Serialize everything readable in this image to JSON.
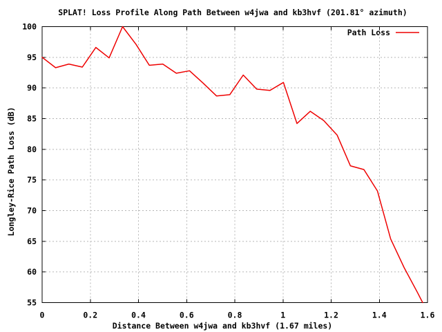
{
  "page": {
    "background": "#ffffff"
  },
  "chart_data": {
    "type": "line",
    "title": "SPLAT! Loss Profile Along Path Between w4jwa and kb3hvf (201.81° azimuth)",
    "xlabel": "Distance Between w4jwa and kb3hvf (1.67 miles)",
    "ylabel": "Longley-Rice Path Loss (dB)",
    "xlim": [
      0,
      1.6
    ],
    "ylim": [
      55,
      100
    ],
    "x_ticks": [
      0,
      0.2,
      0.4,
      0.6,
      0.8,
      1.0,
      1.2,
      1.4,
      1.6
    ],
    "x_tick_labels": [
      "0",
      "0.2",
      "0.4",
      "0.6",
      "0.8",
      "1",
      "1.2",
      "1.4",
      "1.6"
    ],
    "y_ticks": [
      55,
      60,
      65,
      70,
      75,
      80,
      85,
      90,
      95,
      100
    ],
    "y_tick_labels": [
      "55",
      "60",
      "65",
      "70",
      "75",
      "80",
      "85",
      "90",
      "95",
      "100"
    ],
    "grid": "dashed",
    "legend": {
      "position": "top-right-inside",
      "entries": [
        {
          "label": "Path Loss",
          "color": "#ee0000"
        }
      ]
    },
    "colors": {
      "axis": "#000000",
      "grid": "#b4b4b4",
      "text": "#000000",
      "background": "#ffffff"
    },
    "series": [
      {
        "name": "Path Loss",
        "color": "#ee0000",
        "points": [
          [
            0.0,
            95.0
          ],
          [
            0.056,
            93.3
          ],
          [
            0.111,
            93.9
          ],
          [
            0.167,
            93.4
          ],
          [
            0.223,
            96.6
          ],
          [
            0.278,
            94.9
          ],
          [
            0.334,
            100.0
          ],
          [
            0.39,
            97.1
          ],
          [
            0.445,
            93.7
          ],
          [
            0.501,
            93.9
          ],
          [
            0.557,
            92.4
          ],
          [
            0.612,
            92.8
          ],
          [
            0.668,
            90.8
          ],
          [
            0.724,
            88.7
          ],
          [
            0.779,
            88.9
          ],
          [
            0.835,
            92.1
          ],
          [
            0.891,
            89.8
          ],
          [
            0.946,
            89.6
          ],
          [
            1.002,
            90.9
          ],
          [
            1.058,
            84.2
          ],
          [
            1.113,
            86.2
          ],
          [
            1.169,
            84.7
          ],
          [
            1.225,
            82.3
          ],
          [
            1.28,
            77.3
          ],
          [
            1.336,
            76.7
          ],
          [
            1.392,
            73.2
          ],
          [
            1.447,
            65.4
          ],
          [
            1.503,
            60.7
          ],
          [
            1.559,
            56.6
          ],
          [
            1.58,
            55.0
          ]
        ]
      }
    ]
  }
}
